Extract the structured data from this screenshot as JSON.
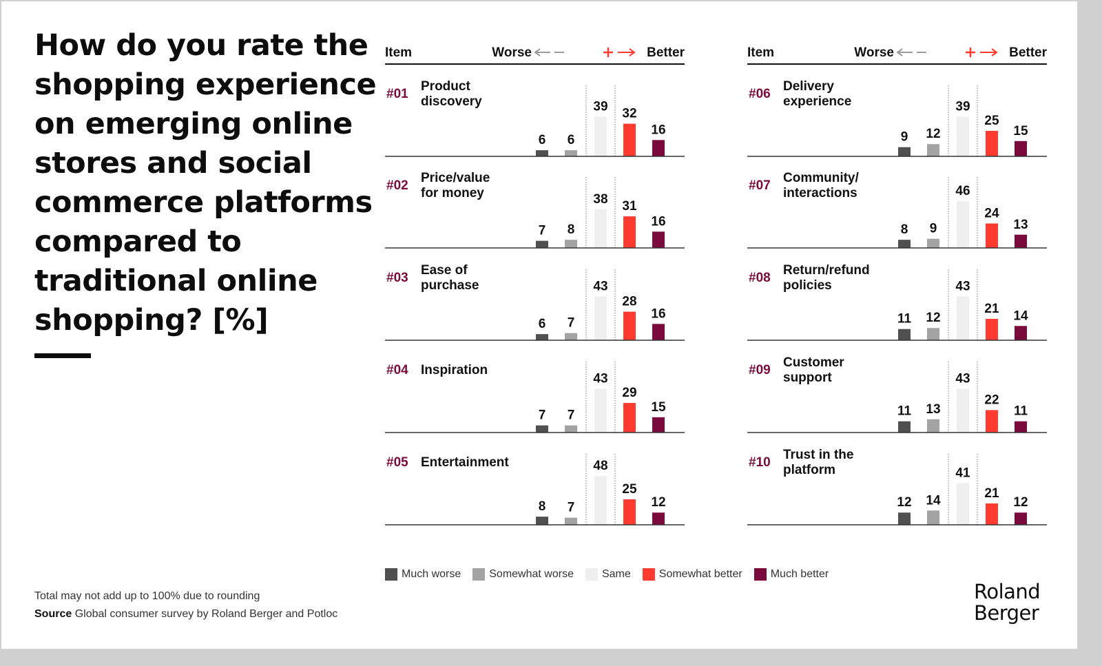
{
  "title": "How do you rate the shopping experience on emerging online stores and social commerce platforms compared to traditional online shopping? [%]",
  "header": {
    "item": "Item",
    "worse": "Worse",
    "better": "Better"
  },
  "colors": {
    "much_worse": "#505050",
    "somewhat_worse": "#a3a3a3",
    "same": "#efefef",
    "somewhat_better": "#ff3b30",
    "much_better": "#7a0a3c",
    "item_number": "#7a0a3c",
    "arrow_worse": "#9a9a9a",
    "arrow_better": "#ff3b30"
  },
  "chart_data": {
    "type": "bar",
    "categories": [
      "Much worse",
      "Somewhat worse",
      "Same",
      "Somewhat better",
      "Much better"
    ],
    "unit": "%",
    "items": [
      {
        "num": "#01",
        "label": [
          "Product",
          "discovery"
        ],
        "values": [
          6,
          6,
          39,
          32,
          16
        ]
      },
      {
        "num": "#02",
        "label": [
          "Price/value",
          "for money"
        ],
        "values": [
          7,
          8,
          38,
          31,
          16
        ]
      },
      {
        "num": "#03",
        "label": [
          "Ease of",
          "purchase"
        ],
        "values": [
          6,
          7,
          43,
          28,
          16
        ]
      },
      {
        "num": "#04",
        "label": [
          "Inspiration"
        ],
        "values": [
          7,
          7,
          43,
          29,
          15
        ]
      },
      {
        "num": "#05",
        "label": [
          "Entertainment"
        ],
        "values": [
          8,
          7,
          48,
          25,
          12
        ]
      },
      {
        "num": "#06",
        "label": [
          "Delivery",
          "experience"
        ],
        "values": [
          9,
          12,
          39,
          25,
          15
        ]
      },
      {
        "num": "#07",
        "label": [
          "Community/",
          "interactions"
        ],
        "values": [
          8,
          9,
          46,
          24,
          13
        ]
      },
      {
        "num": "#08",
        "label": [
          "Return/refund",
          "policies"
        ],
        "values": [
          11,
          12,
          43,
          21,
          14
        ]
      },
      {
        "num": "#09",
        "label": [
          "Customer",
          "support"
        ],
        "values": [
          11,
          13,
          43,
          22,
          11
        ]
      },
      {
        "num": "#10",
        "label": [
          "Trust in the",
          "platform"
        ],
        "values": [
          12,
          14,
          41,
          21,
          12
        ]
      }
    ]
  },
  "legend": [
    "Much worse",
    "Somewhat worse",
    "Same",
    "Somewhat better",
    "Much better"
  ],
  "footnote": "Total may not add up to 100% due to rounding",
  "source": {
    "label": "Source",
    "text": "Global consumer survey by Roland Berger and Potloc"
  },
  "logo": {
    "line1": "Roland",
    "line2": "Berger"
  }
}
